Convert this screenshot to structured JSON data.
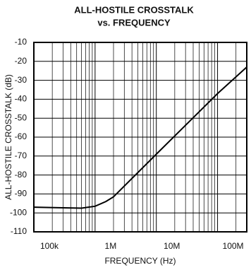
{
  "chart_data": {
    "type": "line",
    "title": "ALL-HOSTILE CROSSTALK",
    "subtitle": "vs. FREQUENCY",
    "x_label": "FREQUENCY (Hz)",
    "y_label": "ALL-HOSTILE CROSSTALK (dB)",
    "log_x": true,
    "grid": true,
    "xlim": [
      100000,
      300000000
    ],
    "xticks": [
      {
        "value": 100000,
        "label": "100k"
      },
      {
        "value": 1000000,
        "label": "1M"
      },
      {
        "value": 10000000,
        "label": "10M"
      },
      {
        "value": 100000000,
        "label": "100M"
      }
    ],
    "xminorticks": [
      200000,
      300000,
      400000,
      500000,
      600000,
      700000,
      800000,
      900000,
      2000000,
      3000000,
      4000000,
      5000000,
      6000000,
      7000000,
      8000000,
      9000000,
      20000000,
      30000000,
      40000000,
      50000000,
      60000000,
      70000000,
      80000000,
      90000000,
      200000000
    ],
    "ylim": [
      -110,
      -10
    ],
    "yticks": [
      -110,
      -100,
      -90,
      -80,
      -70,
      -60,
      -50,
      -40,
      -30,
      -20,
      -10
    ],
    "series": [
      {
        "color": "#000000",
        "x": [
          100000,
          300000,
          600000,
          1000000,
          1500000,
          2000000,
          10000000,
          100000000,
          300000000
        ],
        "values": [
          -97,
          -97.3,
          -97.5,
          -96.5,
          -94,
          -91.5,
          -69,
          -37,
          -23
        ]
      }
    ]
  }
}
